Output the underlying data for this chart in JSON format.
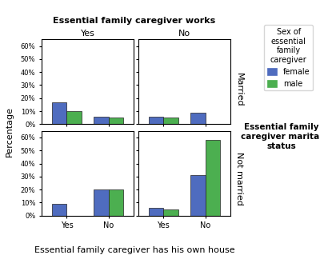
{
  "title": "Essential family caregiver works",
  "xlabel": "Essential family caregiver has his own house",
  "ylabel": "Percentage",
  "col_labels": [
    "Yes",
    "No"
  ],
  "row_labels": [
    "Married",
    "Not married"
  ],
  "x_tick_labels": [
    "Yes",
    "No"
  ],
  "legend_labels": [
    "female",
    "male"
  ],
  "legend_title": "Sex of\nessential\nfamily\ncaregiver",
  "bar_colors": [
    "#4f6cbf",
    "#4caf50"
  ],
  "right_label": "Essential family\ncaregiver marital\nstatus",
  "data": {
    "married_works_yes": {
      "yes_female": 17,
      "yes_male": 10,
      "no_female": 6,
      "no_male": 5
    },
    "married_works_no": {
      "yes_female": 6,
      "yes_male": 5,
      "no_female": 9,
      "no_male": 0
    },
    "not_married_works_yes": {
      "yes_female": 9,
      "yes_male": 0,
      "no_female": 20,
      "no_male": 20
    },
    "not_married_works_no": {
      "yes_female": 6,
      "yes_male": 5,
      "no_female": 31,
      "no_male": 58
    }
  },
  "ylim": [
    0,
    65
  ],
  "yticks": [
    0,
    10,
    20,
    30,
    40,
    50,
    60
  ],
  "bar_width": 0.35,
  "background_color": "#ffffff"
}
